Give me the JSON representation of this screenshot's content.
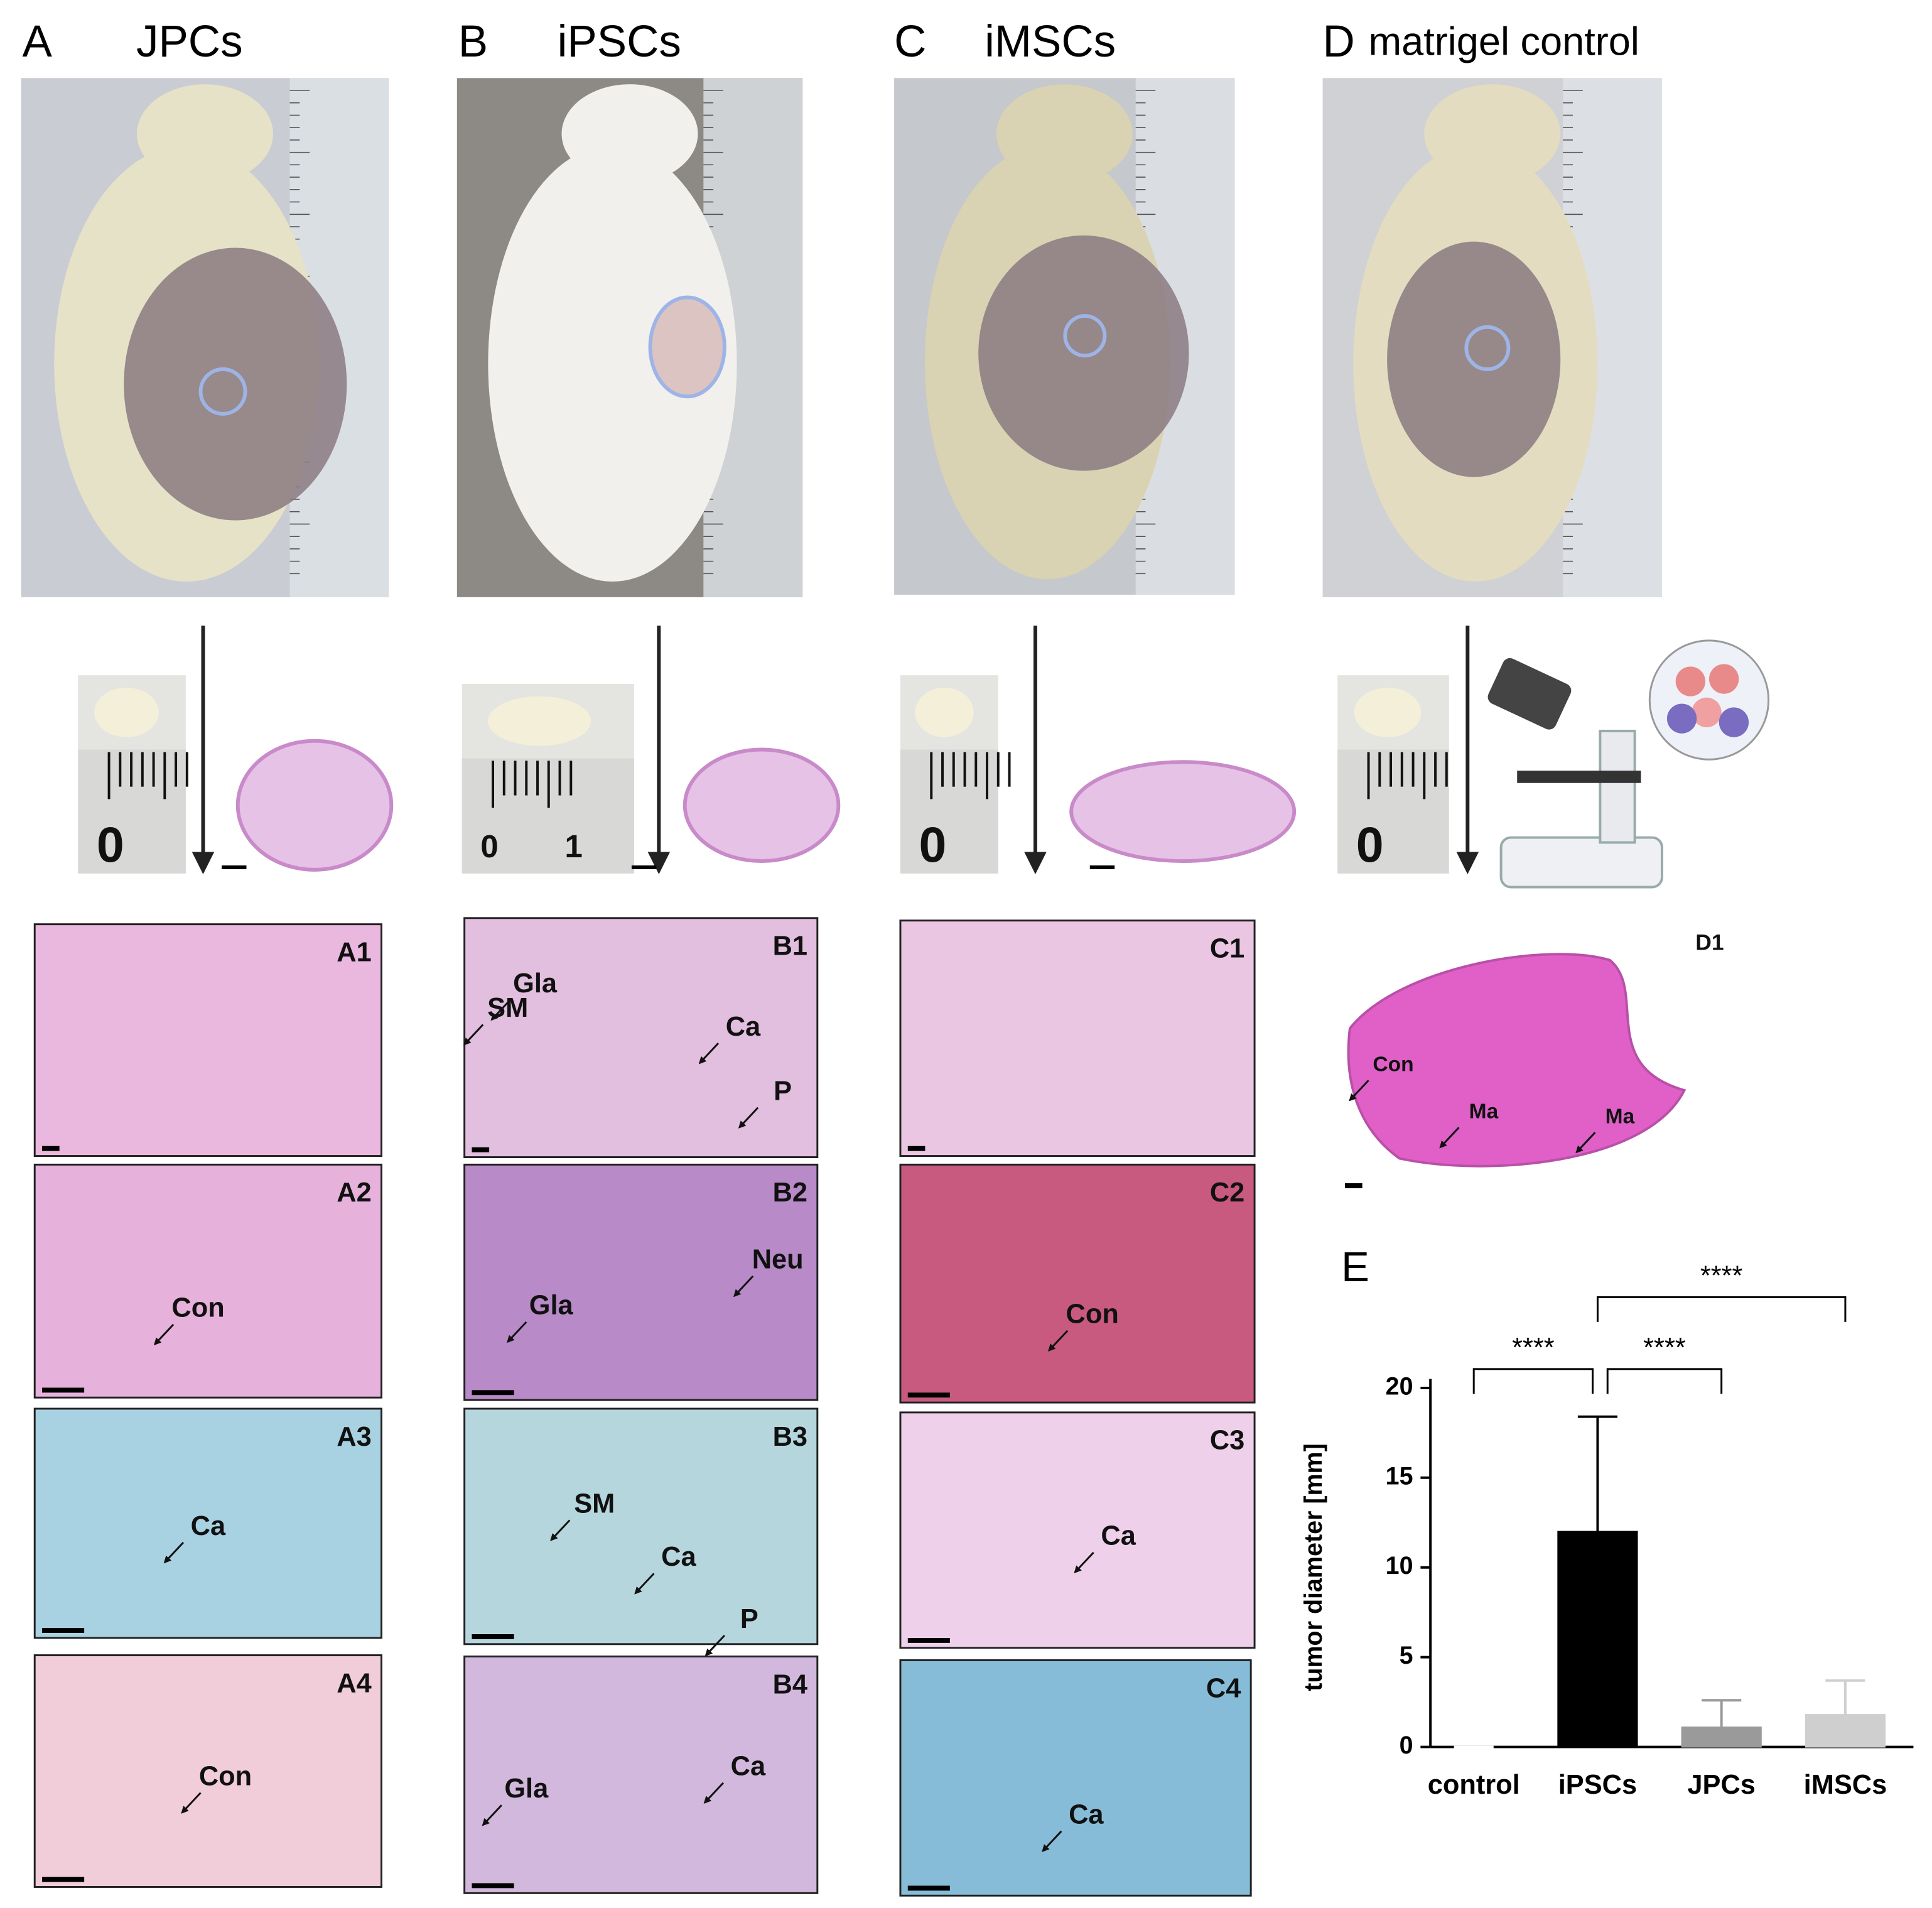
{
  "columns": [
    {
      "letter": "A",
      "title": "JPCs",
      "scale_labels": [
        "0"
      ]
    },
    {
      "letter": "B",
      "title": "iPSCs",
      "scale_labels": [
        "0",
        "1"
      ]
    },
    {
      "letter": "C",
      "title": "iMSCs",
      "scale_labels": [
        "0"
      ]
    },
    {
      "letter": "D",
      "title": "matrigel control",
      "scale_labels": [
        "0"
      ]
    }
  ],
  "histology": [
    {
      "label": "A1"
    },
    {
      "label": "A2",
      "notes": [
        "Con"
      ]
    },
    {
      "label": "A3",
      "notes": [
        "Ca"
      ]
    },
    {
      "label": "A4",
      "notes": [
        "Con"
      ]
    },
    {
      "label": "B1",
      "notes": [
        "Gla",
        "SM",
        "Ca",
        "P"
      ]
    },
    {
      "label": "B2",
      "notes": [
        "Neu",
        "Gla"
      ]
    },
    {
      "label": "B3",
      "notes": [
        "SM",
        "Ca",
        "P"
      ]
    },
    {
      "label": "B4",
      "notes": [
        "Ca",
        "Gla"
      ]
    },
    {
      "label": "C1"
    },
    {
      "label": "C2",
      "notes": [
        "Con"
      ]
    },
    {
      "label": "C3",
      "notes": [
        "Ca"
      ]
    },
    {
      "label": "C4",
      "notes": [
        "Ca"
      ]
    },
    {
      "label": "D1",
      "notes": [
        "Con",
        "Ma",
        "Ma"
      ]
    }
  ],
  "chart_data": {
    "type": "bar",
    "label": "E",
    "y_label": "tumor diameter [mm]",
    "categories": [
      "control",
      "iPSCs",
      "JPCs",
      "iMSCs"
    ],
    "values": [
      0,
      12,
      1.1,
      1.8
    ],
    "errors": [
      0,
      6.4,
      1.5,
      1.9
    ],
    "colors": [
      "#ffffff",
      "#000000",
      "#9a9a9a",
      "#cfcfcf"
    ],
    "ylim": [
      0,
      20.5
    ],
    "yticks": [
      0,
      5,
      10,
      15,
      20
    ],
    "significance": [
      {
        "pair": [
          "control",
          "iPSCs"
        ],
        "label": "****"
      },
      {
        "pair": [
          "iPSCs",
          "JPCs"
        ],
        "label": "****"
      },
      {
        "pair": [
          "iPSCs",
          "iMSCs"
        ],
        "label": "****"
      }
    ]
  }
}
